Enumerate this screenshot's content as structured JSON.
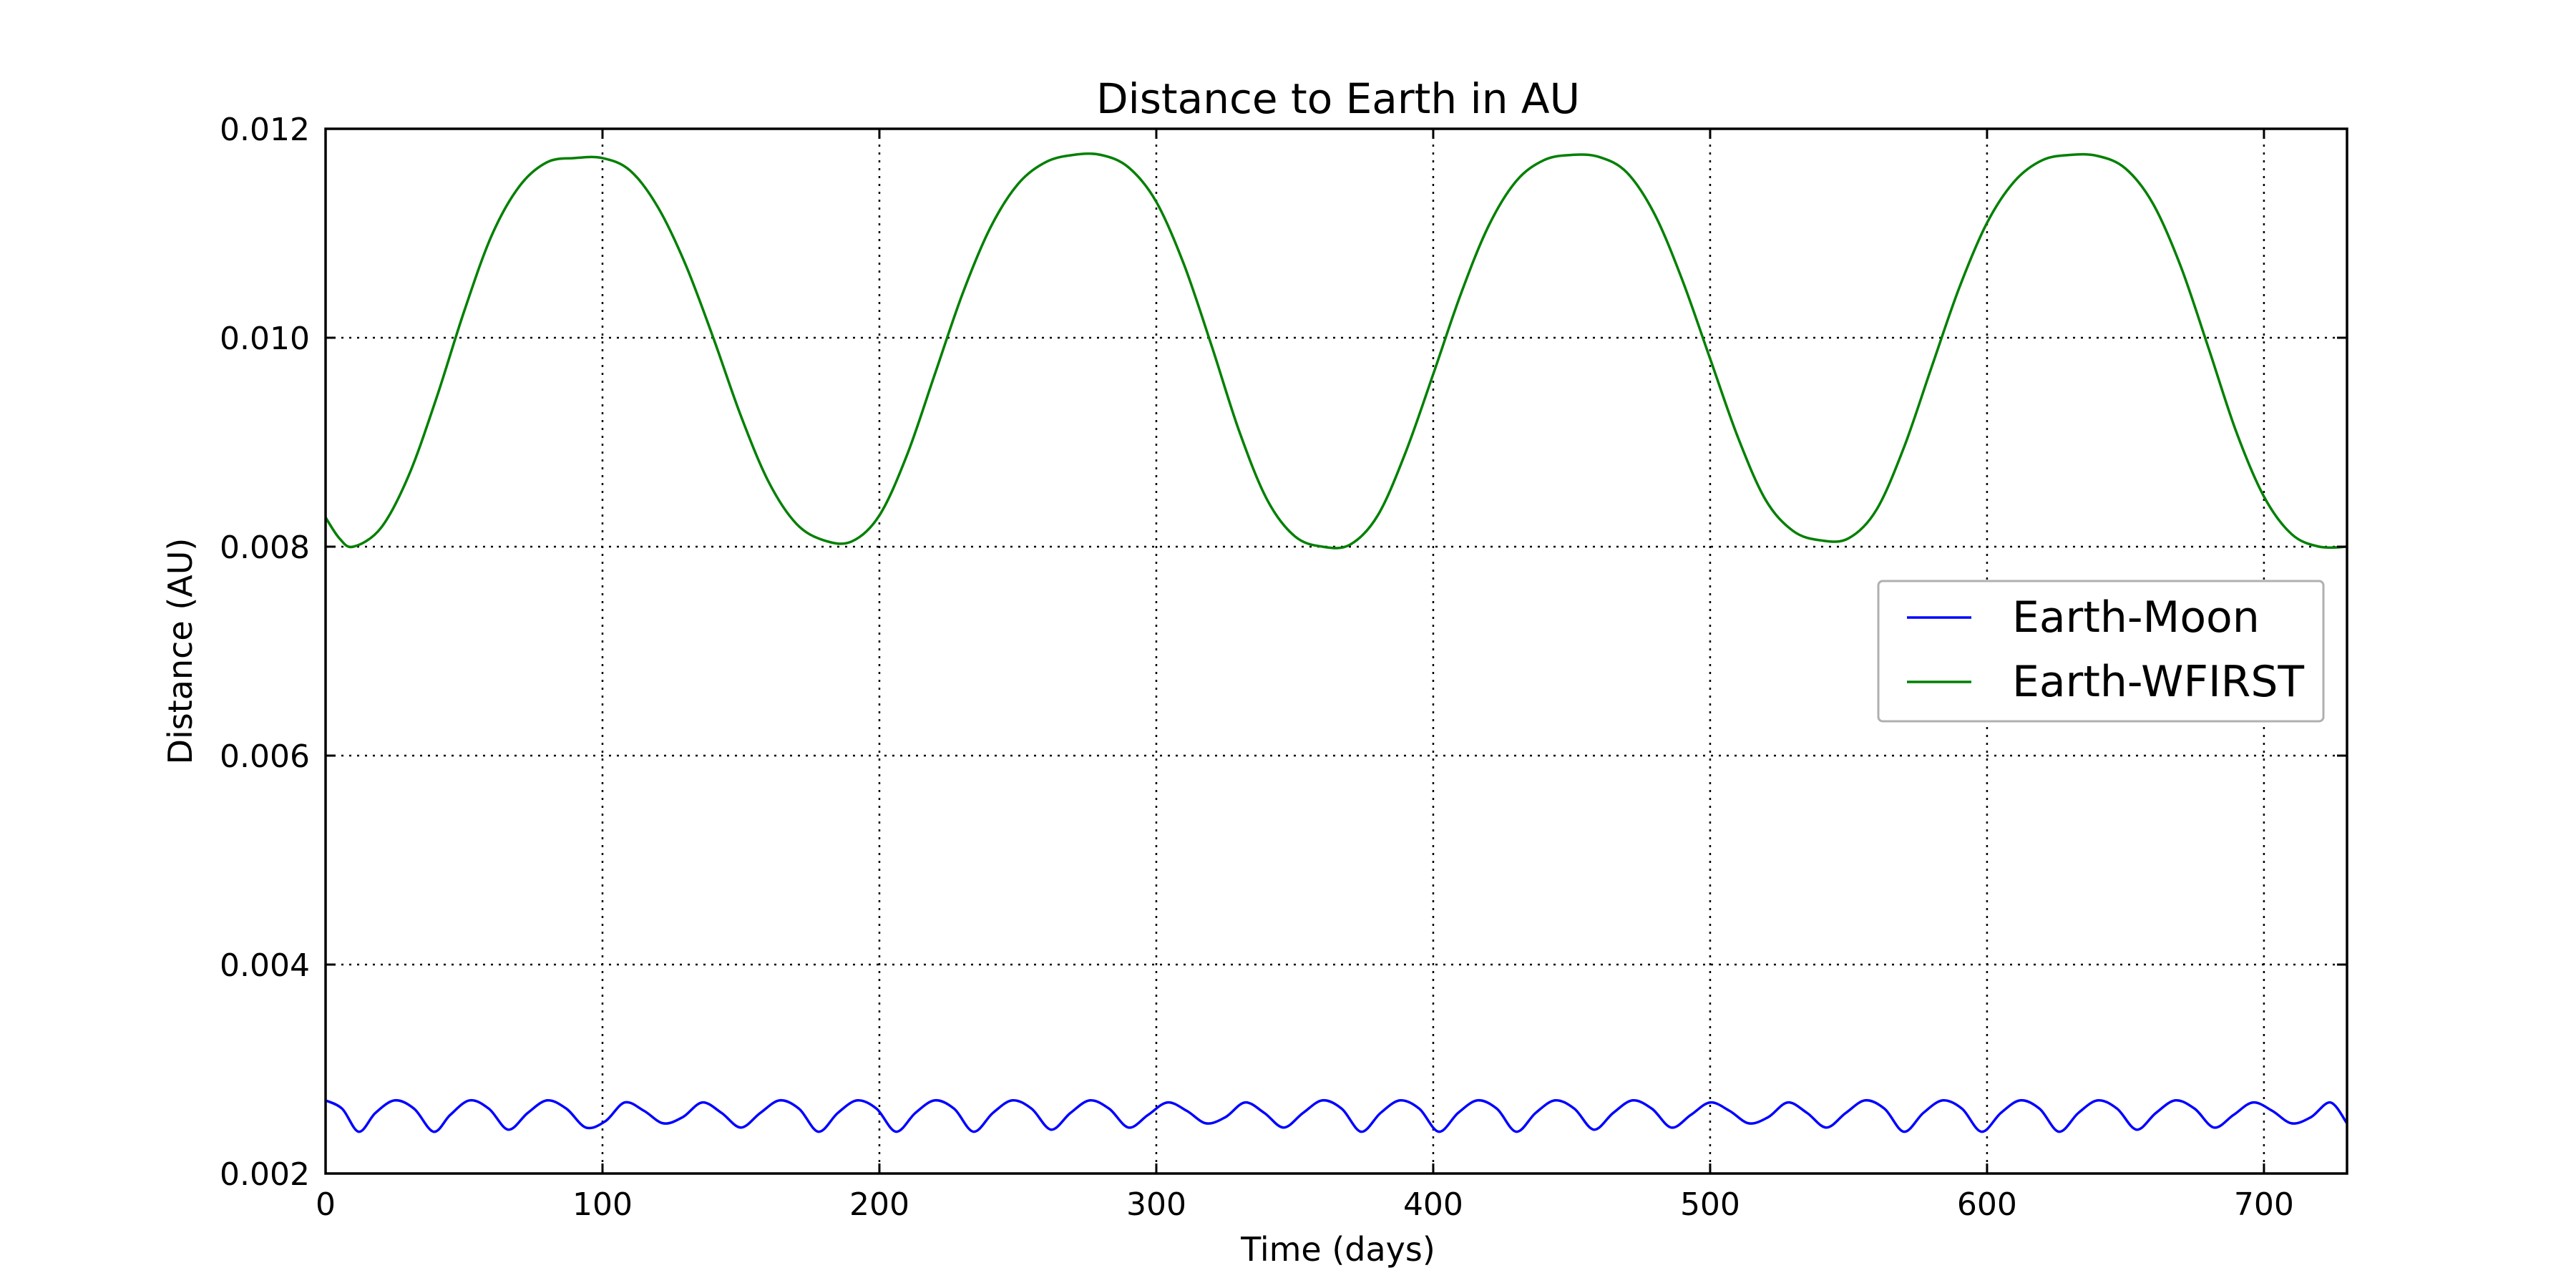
{
  "chart_data": {
    "type": "line",
    "title": "Distance to Earth in AU",
    "xlabel": "Time (days)",
    "ylabel": "Distance (AU)",
    "xlim": [
      0,
      730
    ],
    "ylim": [
      0.002,
      0.012
    ],
    "xticks": [
      0,
      100,
      200,
      300,
      400,
      500,
      600,
      700
    ],
    "yticks": [
      0.002,
      0.004,
      0.006,
      0.008,
      0.01,
      0.012
    ],
    "xtick_labels": [
      "0",
      "100",
      "200",
      "300",
      "400",
      "500",
      "600",
      "700"
    ],
    "ytick_labels": [
      "0.002",
      "0.004",
      "0.006",
      "0.008",
      "0.010",
      "0.012"
    ],
    "grid": true,
    "legend_position": "center-right",
    "series": [
      {
        "name": "Earth-Moon",
        "color": "#0000ff",
        "x": [
          0,
          6,
          12,
          18,
          25,
          32,
          39,
          45,
          52,
          59,
          66,
          73,
          80,
          87,
          94,
          101,
          108,
          115,
          122,
          129,
          136,
          143,
          150,
          157,
          164,
          171,
          178,
          185,
          192,
          199,
          206,
          213,
          220,
          227,
          234,
          241,
          248,
          255,
          262,
          269,
          276,
          283,
          290,
          297,
          304,
          311,
          318,
          325,
          332,
          339,
          346,
          353,
          360,
          367,
          374,
          381,
          388,
          395,
          402,
          409,
          416,
          423,
          430,
          437,
          444,
          451,
          458,
          465,
          472,
          479,
          486,
          493,
          500,
          507,
          514,
          521,
          528,
          535,
          542,
          549,
          556,
          563,
          570,
          577,
          584,
          591,
          598,
          605,
          612,
          619,
          626,
          633,
          640,
          647,
          654,
          661,
          668,
          675,
          682,
          689,
          696,
          703,
          710,
          717,
          724,
          730
        ],
        "y": [
          0.0027,
          0.00262,
          0.0024,
          0.00258,
          0.0027,
          0.00262,
          0.0024,
          0.00256,
          0.0027,
          0.00262,
          0.00242,
          0.00258,
          0.0027,
          0.00262,
          0.00244,
          0.0025,
          0.00268,
          0.0026,
          0.00248,
          0.00254,
          0.00268,
          0.00258,
          0.00244,
          0.00258,
          0.0027,
          0.00262,
          0.0024,
          0.00258,
          0.0027,
          0.00262,
          0.0024,
          0.00258,
          0.0027,
          0.00262,
          0.0024,
          0.00258,
          0.0027,
          0.00262,
          0.00242,
          0.00258,
          0.0027,
          0.00262,
          0.00244,
          0.00256,
          0.00268,
          0.0026,
          0.00248,
          0.00254,
          0.00268,
          0.00258,
          0.00244,
          0.00258,
          0.0027,
          0.00262,
          0.0024,
          0.00258,
          0.0027,
          0.00262,
          0.0024,
          0.00258,
          0.0027,
          0.00262,
          0.0024,
          0.00258,
          0.0027,
          0.00262,
          0.00242,
          0.00258,
          0.0027,
          0.00262,
          0.00244,
          0.00256,
          0.00268,
          0.0026,
          0.00248,
          0.00254,
          0.00268,
          0.00258,
          0.00244,
          0.00258,
          0.0027,
          0.00262,
          0.0024,
          0.00258,
          0.0027,
          0.00262,
          0.0024,
          0.00258,
          0.0027,
          0.00262,
          0.0024,
          0.00258,
          0.0027,
          0.00262,
          0.00242,
          0.00258,
          0.0027,
          0.00262,
          0.00244,
          0.00256,
          0.00268,
          0.0026,
          0.00248,
          0.00254,
          0.00268,
          0.00248
        ]
      },
      {
        "name": "Earth-WFIRST",
        "color": "#008000",
        "x": [
          0,
          5,
          10,
          20,
          30,
          40,
          50,
          60,
          70,
          80,
          90,
          100,
          110,
          120,
          130,
          140,
          150,
          160,
          170,
          180,
          190,
          200,
          210,
          220,
          230,
          240,
          250,
          260,
          270,
          280,
          290,
          300,
          310,
          320,
          330,
          340,
          350,
          360,
          370,
          380,
          390,
          400,
          410,
          420,
          430,
          440,
          450,
          460,
          470,
          480,
          490,
          500,
          510,
          520,
          530,
          540,
          550,
          560,
          570,
          580,
          590,
          600,
          610,
          620,
          630,
          640,
          650,
          660,
          670,
          680,
          690,
          700,
          710,
          720,
          730
        ],
        "y": [
          0.00828,
          0.00808,
          0.008,
          0.00818,
          0.00868,
          0.00942,
          0.01025,
          0.01098,
          0.01145,
          0.01168,
          0.01172,
          0.01172,
          0.0116,
          0.01125,
          0.0107,
          0.01,
          0.00925,
          0.00862,
          0.00822,
          0.00806,
          0.00805,
          0.0083,
          0.00888,
          0.00965,
          0.01042,
          0.01105,
          0.01147,
          0.01168,
          0.01175,
          0.01175,
          0.01163,
          0.0113,
          0.0107,
          0.00992,
          0.0091,
          0.00845,
          0.0081,
          0.008,
          0.00802,
          0.0083,
          0.0089,
          0.00965,
          0.01042,
          0.01107,
          0.0115,
          0.0117,
          0.01175,
          0.01173,
          0.01158,
          0.01118,
          0.01055,
          0.0098,
          0.00905,
          0.00845,
          0.00815,
          0.00806,
          0.00808,
          0.00835,
          0.00895,
          0.00972,
          0.01048,
          0.0111,
          0.0115,
          0.0117,
          0.01175,
          0.01174,
          0.01162,
          0.01128,
          0.01068,
          0.0099,
          0.0091,
          0.00848,
          0.00812,
          0.008,
          0.008
        ]
      }
    ]
  }
}
